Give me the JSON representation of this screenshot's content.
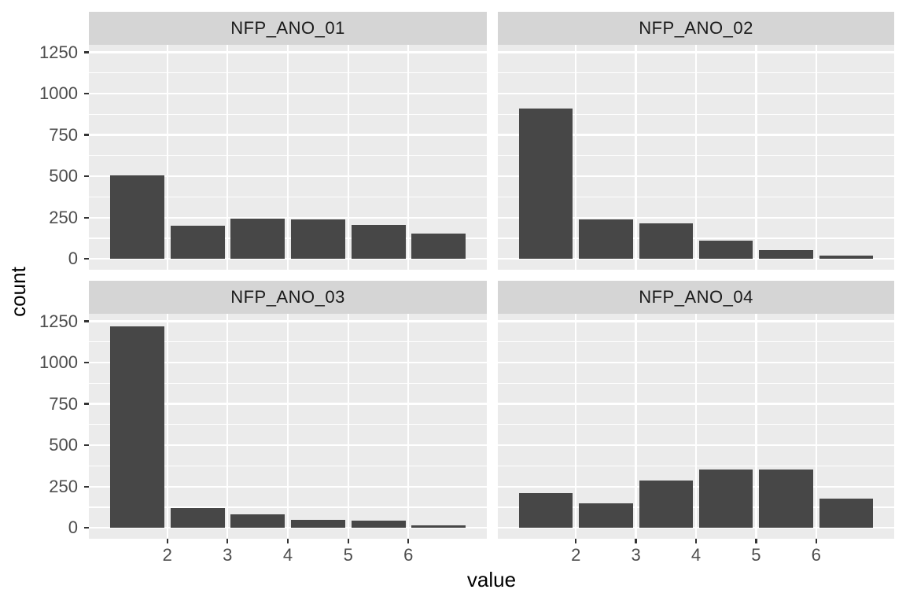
{
  "chart_data": {
    "type": "bar",
    "subtype": "faceted-histogram-ggplot",
    "title": "",
    "xlabel": "value",
    "ylabel": "count",
    "legend": "none",
    "grid": true,
    "facets": [
      {
        "label": "NFP_ANO_01",
        "values": [
          505,
          200,
          245,
          240,
          205,
          155
        ]
      },
      {
        "label": "NFP_ANO_02",
        "values": [
          910,
          240,
          215,
          110,
          55,
          20
        ]
      },
      {
        "label": "NFP_ANO_03",
        "values": [
          1220,
          120,
          85,
          50,
          45,
          15
        ]
      },
      {
        "label": "NFP_ANO_04",
        "values": [
          210,
          150,
          285,
          355,
          355,
          180
        ]
      }
    ],
    "bin_centers": [
      1.5,
      2.5,
      3.5,
      4.5,
      5.5,
      6.5
    ],
    "bar_width_units": 0.9,
    "x_tick_values": [
      2,
      3,
      4,
      5,
      6
    ],
    "x_tick_labels": [
      "2",
      "3",
      "4",
      "5",
      "6"
    ],
    "y_tick_values": [
      0,
      250,
      500,
      750,
      1000,
      1250
    ],
    "y_tick_labels": [
      "0",
      "250",
      "500",
      "750",
      "1000",
      "1250"
    ],
    "y_minor_values": [
      125,
      375,
      625,
      875,
      1125
    ],
    "xlim": [
      0.7,
      7.3
    ],
    "ylim": [
      -65,
      1295
    ],
    "colors": {
      "bar": "#474747",
      "panel_bg": "#EBEBEB",
      "strip_bg": "#D5D5D5",
      "gridline": "#FFFFFF",
      "tick_mark": "#333333",
      "tick_text": "#4D4D4D",
      "axis_title_text": "#000000",
      "background": "#FFFFFF"
    }
  }
}
